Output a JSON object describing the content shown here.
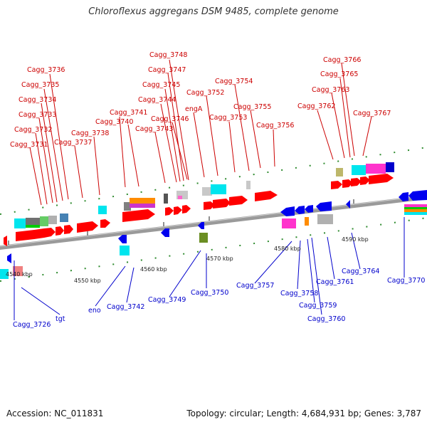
{
  "title": "Chloroflexus aggregans DSM 9485, complete genome",
  "footer": {
    "accession": "Accession: NC_011831",
    "topology": "Topology: circular; Length: 4,684,931 bp; Genes: 3,787"
  },
  "colors": {
    "forward": "#ff0000",
    "reverse": "#0000ee",
    "forward_label": "#cc0000",
    "reverse_label": "#0000cc",
    "backbone": "#888888"
  },
  "ticks": [
    "4540 kbp",
    "4550 kbp",
    "4560 kbp",
    "4570 kbp",
    "4580 kbp",
    "4590 kbp"
  ],
  "forward_labels": [
    "Cagg_3736",
    "Cagg_3735",
    "Cagg_3734",
    "Cagg_3733",
    "Cagg_3732",
    "Cagg_3731",
    "Cagg_3738",
    "Cagg_3737",
    "Cagg_3741",
    "Cagg_3740",
    "Cagg_3748",
    "Cagg_3747",
    "Cagg_3745",
    "Cagg_3744",
    "Cagg_3746",
    "Cagg_3743",
    "Cagg_3752",
    "engA",
    "Cagg_3754",
    "Cagg_3755",
    "Cagg_3753",
    "Cagg_3756",
    "Cagg_3766",
    "Cagg_3765",
    "Cagg_3763",
    "Cagg_3762",
    "Cagg_3767"
  ],
  "reverse_labels": [
    "Cagg_3726",
    "tgt",
    "eno",
    "Cagg_3742",
    "Cagg_3749",
    "Cagg_3750",
    "Cagg_3757",
    "Cagg_3758",
    "Cagg_3759",
    "Cagg_3760",
    "Cagg_3761",
    "Cagg_3764",
    "Cagg_3770"
  ]
}
